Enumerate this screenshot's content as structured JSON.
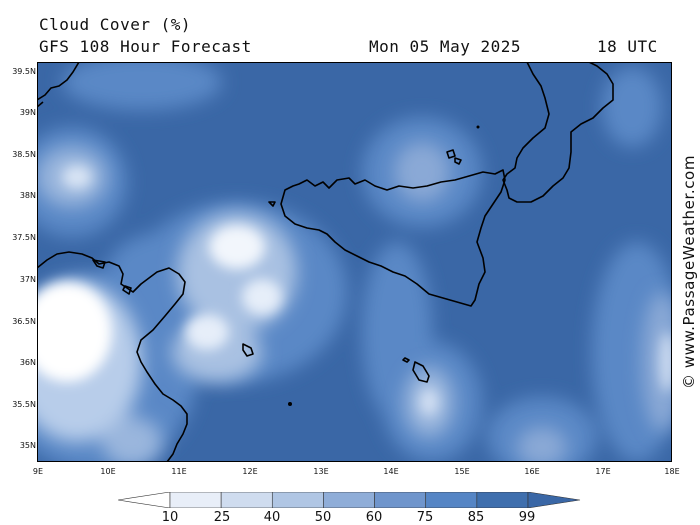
{
  "header": {
    "title": "Cloud Cover (%)",
    "model": "GFS 108 Hour Forecast",
    "date": "Mon 05 May 2025",
    "time": "18 UTC"
  },
  "credit": "© www.PassageWeather.com",
  "axes": {
    "lat_labels": [
      "39.5N",
      "39N",
      "38.5N",
      "38N",
      "37.5N",
      "37N",
      "36.5N",
      "36N",
      "35.5N",
      "35N"
    ],
    "lon_labels": [
      "9E",
      "10E",
      "11E",
      "12E",
      "13E",
      "14E",
      "15E",
      "16E",
      "17E",
      "18E"
    ]
  },
  "legend": {
    "ticks": [
      "10",
      "25",
      "40",
      "50",
      "60",
      "75",
      "85",
      "99"
    ],
    "colors": [
      "#ffffff",
      "#e8eef8",
      "#cfdcef",
      "#b0c6e4",
      "#8fadd8",
      "#6f95cc",
      "#5585c5",
      "#3f6fae",
      "#3a67a6"
    ]
  },
  "colors": {
    "background": "#ffffff",
    "coastline": "#000000",
    "deep_cloud": "#3a67a6"
  }
}
